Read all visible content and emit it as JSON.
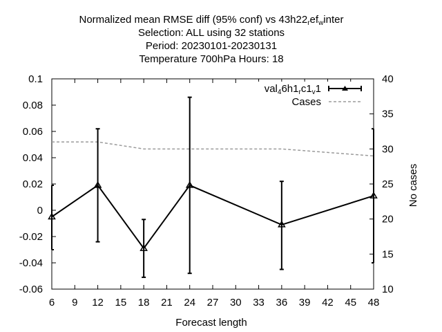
{
  "chart_data": {
    "type": "line",
    "title_lines": [
      "Normalized mean RMSE diff (95% conf) vs 43h22_ref_winter",
      "Selection: ALL using    32 stations",
      "Period: 20230101-20230131",
      "Temperature 700hPa   Hours:  18"
    ],
    "xlabel": "Forecast length",
    "ylabel": "",
    "y2label": "No cases",
    "xlim": [
      6,
      48
    ],
    "ylim": [
      -0.06,
      0.1
    ],
    "y2lim": [
      10,
      40
    ],
    "x_ticks": [
      "6",
      "9",
      "12",
      "15",
      "18",
      "21",
      "24",
      "27",
      "30",
      "33",
      "36",
      "39",
      "42",
      "45",
      "48"
    ],
    "y_ticks": [
      "0.1",
      "0.08",
      "0.06",
      "0.04",
      "0.02",
      "0",
      "-0.02",
      "-0.04",
      "-0.06"
    ],
    "y2_ticks": [
      "40",
      "35",
      "30",
      "25",
      "20",
      "15",
      "10"
    ],
    "legend_position": "top-right",
    "series": [
      {
        "name": "val_46h1_rc1_v1",
        "axis": "y",
        "color": "#000000",
        "marker": "triangle",
        "x": [
          6,
          12,
          18,
          24,
          36,
          48
        ],
        "y": [
          -0.005,
          0.019,
          -0.029,
          0.019,
          -0.011,
          0.011
        ],
        "err_low": [
          -0.03,
          -0.024,
          -0.051,
          -0.048,
          -0.045,
          -0.04
        ],
        "err_high": [
          0.019,
          0.062,
          -0.007,
          0.086,
          0.022,
          0.062
        ]
      },
      {
        "name": "Cases",
        "axis": "y2",
        "color": "#9a9a9a",
        "style": "dashed",
        "x": [
          6,
          12,
          18,
          24,
          30,
          36,
          42,
          48
        ],
        "y": [
          31,
          31,
          30,
          30,
          30,
          30,
          29.5,
          29
        ]
      }
    ]
  }
}
